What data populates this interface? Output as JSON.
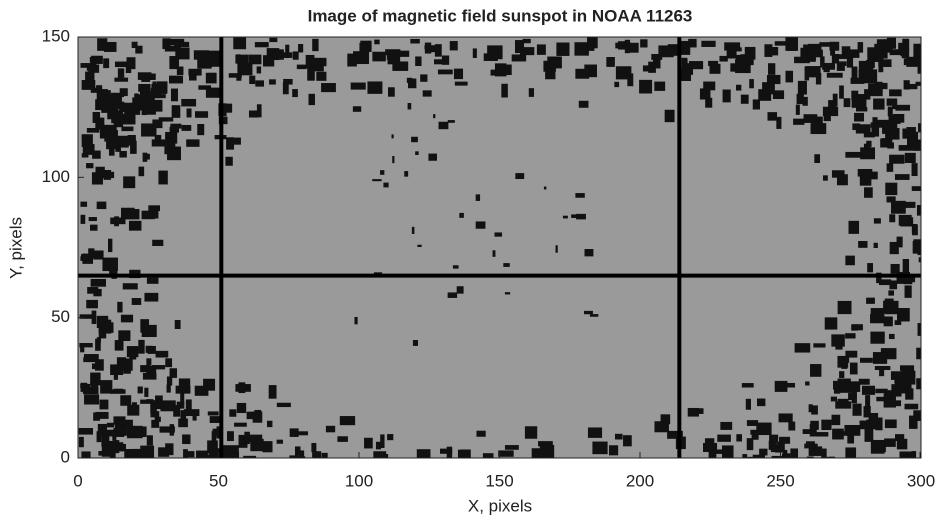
{
  "chart_data": {
    "type": "image",
    "title": "Image of magnetic field sunspot in NOAA 11263",
    "xlabel": "X, pixels",
    "ylabel": "Y, pixels",
    "xlim": [
      0,
      300
    ],
    "ylim": [
      0,
      150
    ],
    "xticks": [
      0,
      50,
      100,
      150,
      200,
      250,
      300
    ],
    "yticks": [
      0,
      50,
      100,
      150
    ],
    "vlines": [
      51,
      214
    ],
    "hlines": [
      65
    ],
    "background_color": "#9a9a9a",
    "feature_color": "#111111",
    "line_color": "#000000"
  }
}
